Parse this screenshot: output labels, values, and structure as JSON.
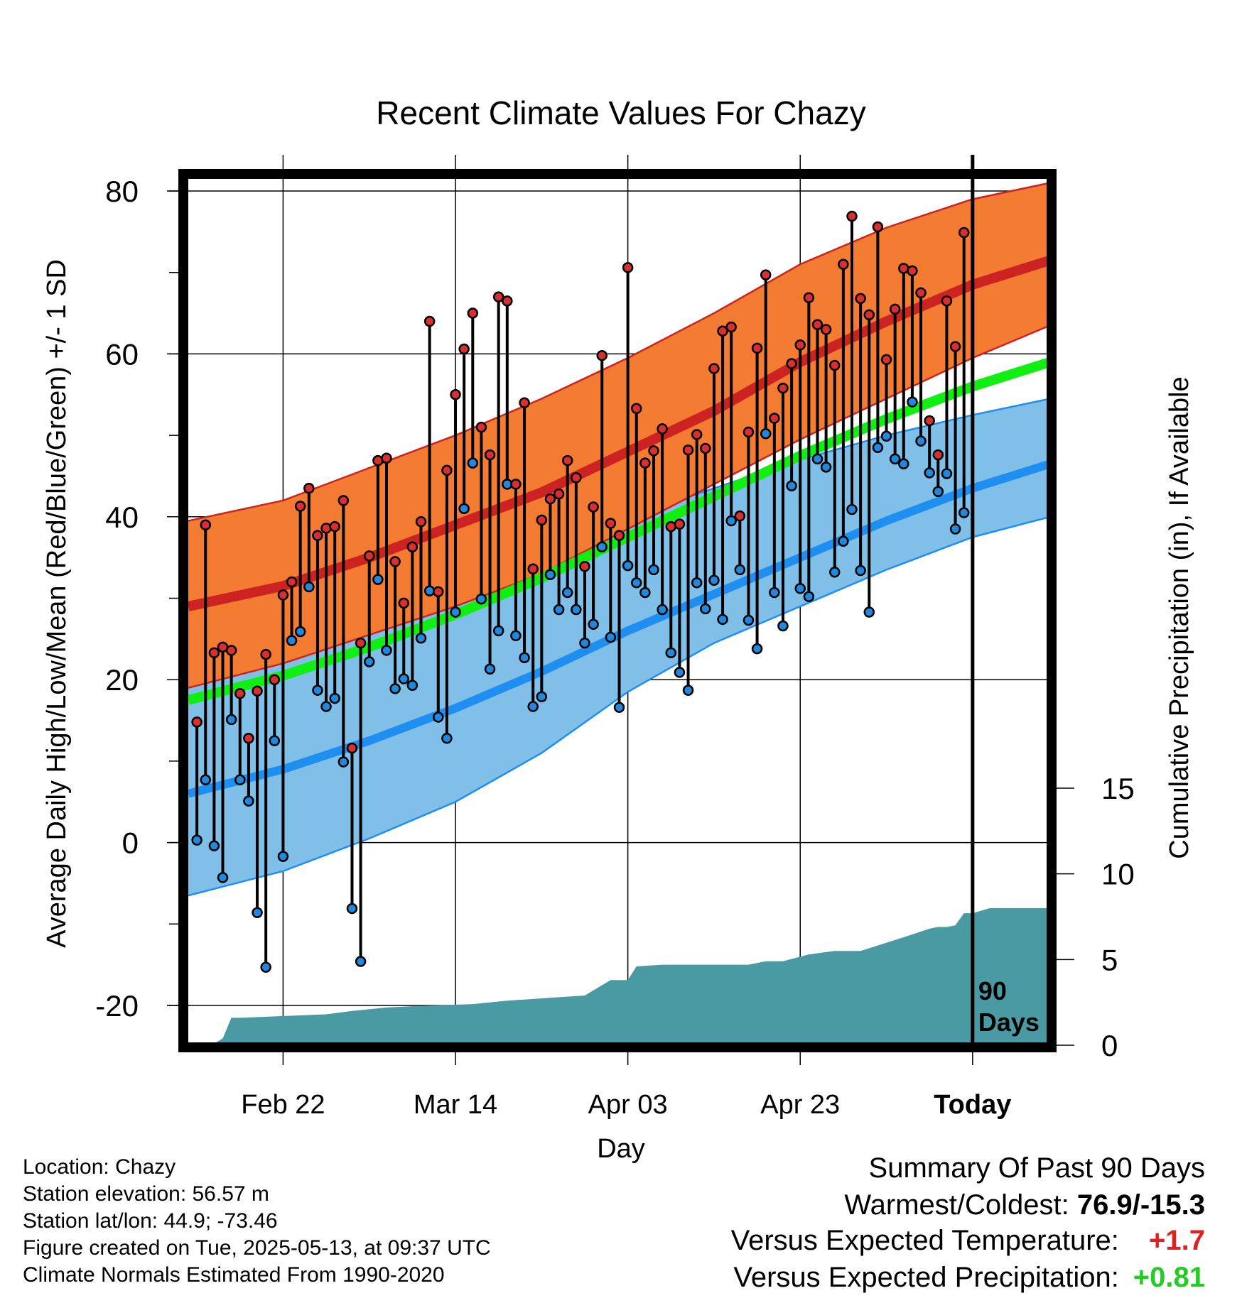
{
  "chart_data": {
    "type": "line",
    "title": "Recent Climate Values For Chazy",
    "xlabel": "Day",
    "ylabel": "Average Daily High/Low/Mean (Red/Blue/Green) +/- 1 SD",
    "ylabel_right": "Cumulative Precipitation (in), If Available",
    "x_tick_labels": [
      "Feb 22",
      "Mar 14",
      "Apr 03",
      "Apr 23",
      "Today"
    ],
    "y_ticks": [
      -20,
      0,
      20,
      40,
      60,
      80
    ],
    "y2_ticks": [
      0,
      5,
      10,
      15
    ],
    "ylim": [
      -25,
      82
    ],
    "y2lim": [
      0,
      55
    ],
    "window_label": "90 Days",
    "x_unit": "days relative to today (0 = May 13)",
    "xlim": [
      -91,
      9
    ],
    "normals": {
      "x": [
        -91,
        -80,
        -70,
        -60,
        -50,
        -40,
        -30,
        -20,
        -10,
        0,
        9
      ],
      "high_mean": [
        29,
        31.5,
        35,
        39,
        43,
        48,
        53,
        59,
        64,
        68.5,
        71.5
      ],
      "high_plus_sd": [
        39.5,
        42,
        46,
        50,
        54.5,
        59.5,
        65,
        71,
        75.5,
        79,
        81
      ],
      "high_minus_sd": [
        19,
        22,
        25.5,
        29,
        33,
        38.5,
        44,
        49.5,
        54.5,
        59.5,
        63.5
      ],
      "low_mean": [
        6,
        9,
        12.5,
        16.5,
        21,
        26,
        30.5,
        35,
        39.5,
        43.5,
        46.5
      ],
      "low_plus_sd": [
        20.5,
        23.5,
        27.5,
        31.5,
        35.5,
        40,
        43.5,
        47,
        50,
        52.5,
        54.5
      ],
      "low_minus_sd": [
        -6.5,
        -3.5,
        0.5,
        5,
        11,
        18.5,
        24.5,
        29,
        33.5,
        37.5,
        40
      ],
      "mean": [
        17.5,
        20.5,
        24,
        28,
        32.5,
        37.5,
        42.5,
        47.5,
        52,
        56,
        59
      ]
    },
    "daily_highs": [
      14.8,
      39,
      23.3,
      24,
      23.6,
      18.3,
      12.8,
      18.6,
      23.1,
      20,
      30.4,
      32,
      41.3,
      43.5,
      37.7,
      38.6,
      38.8,
      42,
      11.6,
      24.5,
      35.2,
      46.9,
      47.2,
      34.5,
      29.4,
      36.3,
      39.4,
      64,
      30.8,
      45.7,
      55,
      60.6,
      65,
      51,
      47.6,
      67,
      66.5,
      44,
      54,
      33.6,
      39.6,
      42.2,
      42.8,
      46.9,
      44.8,
      33.9,
      41.2,
      59.8,
      39.2,
      37.7,
      70.6,
      53.3,
      46.6,
      48.1,
      50.8,
      38.8,
      39.1,
      48.2,
      50.1,
      48.4,
      58.2,
      62.8,
      63.3,
      40.1,
      50.4,
      60.7,
      69.7,
      52.1,
      55.8,
      58.8,
      61.1,
      66.9,
      63.6,
      63,
      58.6,
      71,
      76.9,
      66.8,
      64.8,
      75.6,
      59.3,
      65.5,
      70.5,
      70.2,
      67.5,
      51.8,
      47.6,
      66.5,
      60.9,
      74.9
    ],
    "daily_lows": [
      0.3,
      7.7,
      -0.4,
      -4.3,
      15.1,
      7.7,
      5.1,
      -8.6,
      -15.3,
      12.5,
      -1.7,
      24.8,
      25.9,
      31.4,
      18.7,
      16.7,
      17.7,
      9.9,
      -8.1,
      -14.6,
      22.2,
      32.3,
      23.6,
      18.9,
      20.1,
      19.3,
      25.1,
      30.9,
      15.4,
      12.8,
      28.3,
      41,
      46.6,
      29.9,
      21.3,
      26,
      44,
      25.4,
      22.7,
      16.7,
      17.9,
      32.9,
      28.6,
      30.7,
      28.6,
      24.5,
      26.8,
      36.3,
      25.2,
      16.6,
      34,
      31.9,
      30.7,
      33.5,
      28.6,
      23.3,
      20.9,
      18.7,
      31.9,
      28.7,
      32.2,
      27.4,
      39.5,
      33.5,
      27.3,
      23.8,
      50.2,
      30.7,
      26.6,
      43.8,
      31.2,
      30.2,
      47.1,
      46.1,
      33.2,
      37,
      40.9,
      33.4,
      28.3,
      48.5,
      49.9,
      47.1,
      46.5,
      54.1,
      49.3,
      45.4,
      43.1,
      45.3,
      38.5,
      40.5
    ],
    "precip_cumulative_x": [
      -91,
      -88,
      -87,
      -86,
      -85,
      -75,
      -72,
      -68,
      -64,
      -58,
      -54,
      -51,
      -45,
      -42,
      -40,
      -39,
      -36,
      -34,
      -26,
      -24,
      -22,
      -19,
      -16,
      -13,
      -8,
      -5,
      -4,
      -3,
      -2,
      -1,
      0,
      2,
      4,
      5,
      6,
      8,
      9
    ],
    "precip_cumulative": [
      0,
      0.1,
      0.4,
      1.6,
      1.6,
      1.8,
      2,
      2.2,
      2.3,
      2.4,
      2.6,
      2.7,
      2.9,
      3.8,
      3.8,
      4.6,
      4.7,
      4.7,
      4.7,
      4.9,
      4.9,
      5.3,
      5.5,
      5.5,
      6.3,
      6.8,
      6.9,
      6.9,
      7.0,
      7.7,
      7.7,
      8.0,
      8.0,
      8.0,
      8.0,
      8.0,
      8.0
    ],
    "colors": {
      "high_band": "#f47b32",
      "high_mean": "#cc2222",
      "low_band": "#80c0e8",
      "low_mean": "#1e8ef0",
      "mean": "#11ee11",
      "precip": "#4a9aa4",
      "high_dot": "#d83030",
      "low_dot": "#2288dd"
    }
  },
  "info": {
    "location": "Location: Chazy",
    "elevation": "Station elevation: 56.57 m",
    "latlon": "Station lat/lon: 44.9; -73.46",
    "created": "Figure created on Tue, 2025-05-13, at 09:37 UTC",
    "normals": "Climate Normals Estimated From 1990-2020"
  },
  "summary": {
    "title": "Summary Of Past 90 Days",
    "warm_cold_label": "Warmest/Coldest:",
    "warm_cold_value": "76.9/-15.3",
    "temp_label": "Versus Expected Temperature:",
    "temp_value": "+1.7",
    "precip_label": "Versus Expected Precipitation:",
    "precip_value": "+0.81"
  }
}
